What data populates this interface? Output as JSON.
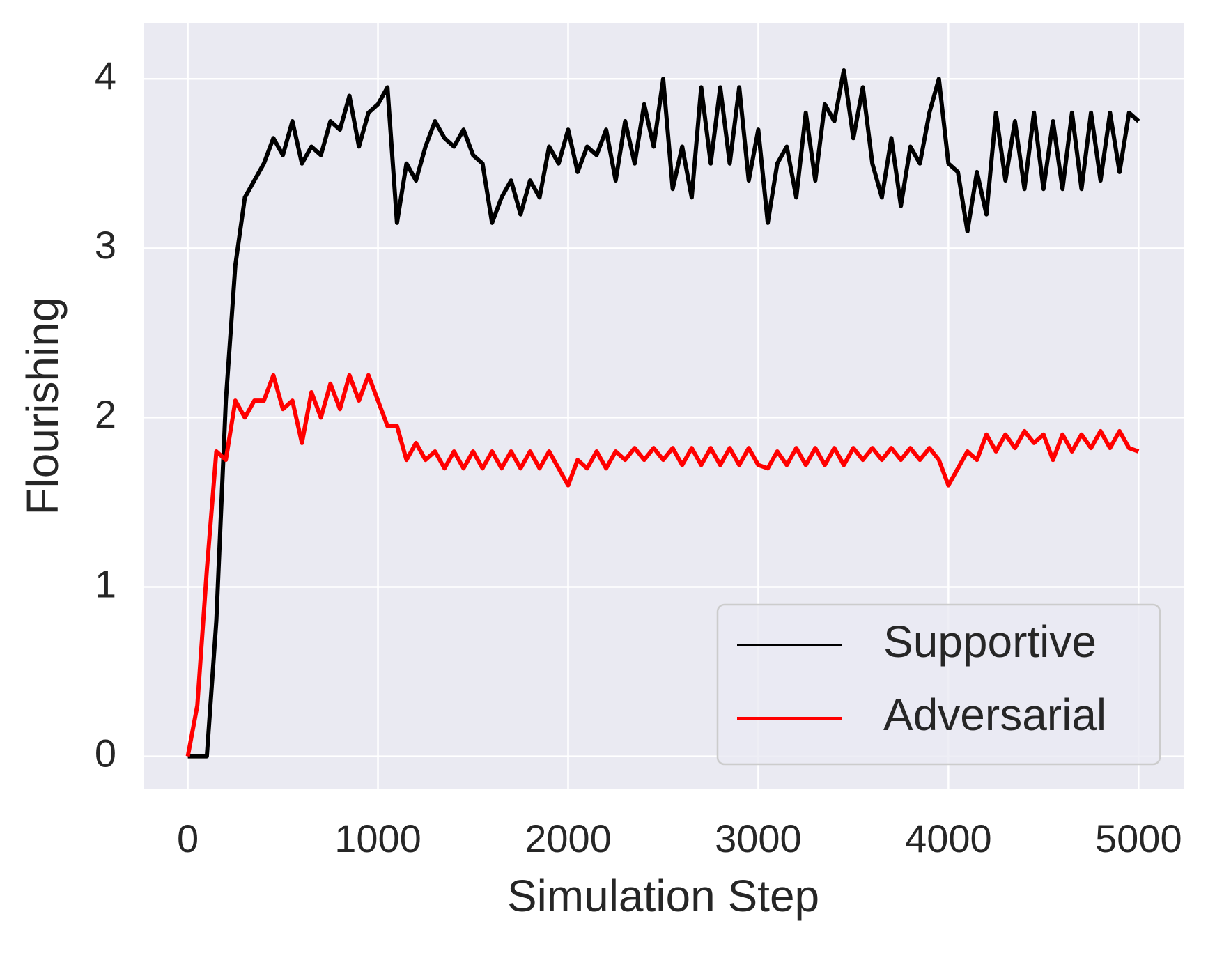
{
  "chart_data": {
    "type": "line",
    "xlabel": "Simulation Step",
    "ylabel": "Flourishing",
    "x": [
      0,
      50,
      100,
      150,
      200,
      250,
      300,
      350,
      400,
      450,
      500,
      550,
      600,
      650,
      700,
      750,
      800,
      850,
      900,
      950,
      1000,
      1050,
      1100,
      1150,
      1200,
      1250,
      1300,
      1350,
      1400,
      1450,
      1500,
      1550,
      1600,
      1650,
      1700,
      1750,
      1800,
      1850,
      1900,
      1950,
      2000,
      2050,
      2100,
      2150,
      2200,
      2250,
      2300,
      2350,
      2400,
      2450,
      2500,
      2550,
      2600,
      2650,
      2700,
      2750,
      2800,
      2850,
      2900,
      2950,
      3000,
      3050,
      3100,
      3150,
      3200,
      3250,
      3300,
      3350,
      3400,
      3450,
      3500,
      3550,
      3600,
      3650,
      3700,
      3750,
      3800,
      3850,
      3900,
      3950,
      4000,
      4050,
      4100,
      4150,
      4200,
      4250,
      4300,
      4350,
      4400,
      4450,
      4500,
      4550,
      4600,
      4650,
      4700,
      4750,
      4800,
      4850,
      4900,
      4950,
      5000
    ],
    "series": [
      {
        "name": "Supportive",
        "color": "#000000",
        "values": [
          0,
          0,
          0,
          0.8,
          2.1,
          2.9,
          3.3,
          3.4,
          3.5,
          3.65,
          3.55,
          3.75,
          3.5,
          3.6,
          3.55,
          3.75,
          3.7,
          3.9,
          3.6,
          3.8,
          3.85,
          3.95,
          3.15,
          3.5,
          3.4,
          3.6,
          3.75,
          3.65,
          3.6,
          3.7,
          3.55,
          3.5,
          3.15,
          3.3,
          3.4,
          3.2,
          3.4,
          3.3,
          3.6,
          3.5,
          3.7,
          3.45,
          3.6,
          3.55,
          3.7,
          3.4,
          3.75,
          3.5,
          3.85,
          3.6,
          4.0,
          3.35,
          3.6,
          3.3,
          3.95,
          3.5,
          3.95,
          3.5,
          3.95,
          3.4,
          3.7,
          3.15,
          3.5,
          3.6,
          3.3,
          3.8,
          3.4,
          3.85,
          3.75,
          4.05,
          3.65,
          3.95,
          3.5,
          3.3,
          3.65,
          3.25,
          3.6,
          3.5,
          3.8,
          4.0,
          3.5,
          3.45,
          3.1,
          3.45,
          3.2,
          3.8,
          3.4,
          3.75,
          3.35,
          3.8,
          3.35,
          3.75,
          3.35,
          3.8,
          3.35,
          3.8,
          3.4,
          3.8,
          3.45,
          3.8,
          3.75
        ]
      },
      {
        "name": "Adversarial",
        "color": "#ff0000",
        "values": [
          0,
          0.3,
          1.1,
          1.8,
          1.75,
          2.1,
          2.0,
          2.1,
          2.1,
          2.25,
          2.05,
          2.1,
          1.85,
          2.15,
          2.0,
          2.2,
          2.05,
          2.25,
          2.1,
          2.25,
          2.1,
          1.95,
          1.95,
          1.75,
          1.85,
          1.75,
          1.8,
          1.7,
          1.8,
          1.7,
          1.8,
          1.7,
          1.8,
          1.7,
          1.8,
          1.7,
          1.8,
          1.7,
          1.8,
          1.7,
          1.6,
          1.75,
          1.7,
          1.8,
          1.7,
          1.8,
          1.75,
          1.82,
          1.75,
          1.82,
          1.75,
          1.82,
          1.72,
          1.82,
          1.72,
          1.82,
          1.72,
          1.82,
          1.72,
          1.82,
          1.72,
          1.7,
          1.8,
          1.72,
          1.82,
          1.72,
          1.82,
          1.72,
          1.82,
          1.72,
          1.82,
          1.75,
          1.82,
          1.75,
          1.82,
          1.75,
          1.82,
          1.75,
          1.82,
          1.75,
          1.6,
          1.7,
          1.8,
          1.75,
          1.9,
          1.8,
          1.9,
          1.82,
          1.92,
          1.85,
          1.9,
          1.75,
          1.9,
          1.8,
          1.9,
          1.82,
          1.92,
          1.82,
          1.92,
          1.82,
          1.8
        ]
      }
    ],
    "xlim": [
      -233,
      5237
    ],
    "ylim": [
      -0.195,
      4.33
    ],
    "xticks": [
      0,
      1000,
      2000,
      3000,
      4000,
      5000
    ],
    "yticks": [
      0,
      1,
      2,
      3,
      4
    ],
    "grid": true,
    "legend": "lower right"
  }
}
